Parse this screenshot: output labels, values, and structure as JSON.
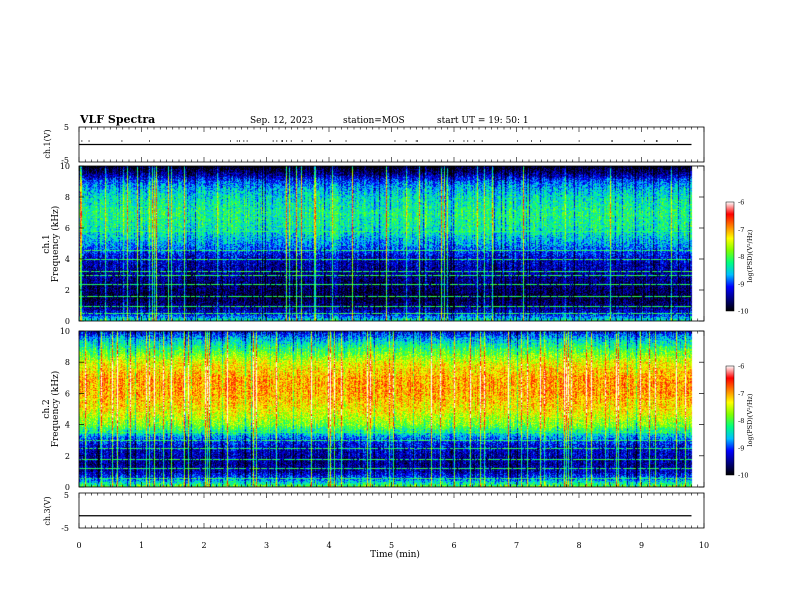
{
  "header": {
    "title": "VLF Spectra",
    "date": "Sep. 12, 2023",
    "station": "station=MOS",
    "start_ut": "start UT =  19: 50: 1"
  },
  "chart_data": [
    {
      "type": "line",
      "panel": "ch1-waveform",
      "ylabel": "ch.1(V)",
      "ylim": [
        -5,
        5
      ],
      "yticks": [
        "5",
        "-5"
      ],
      "series": [
        {
          "x": [
            0,
            9.8
          ],
          "values": [
            0,
            0
          ]
        }
      ]
    },
    {
      "type": "heatmap",
      "panel": "ch1-spectrogram",
      "ylabel": "ch.1  Frequency (kHz)",
      "ylim": [
        0,
        10
      ],
      "yticks": [
        "0",
        "2",
        "4",
        "6",
        "8",
        "10"
      ],
      "xlim": [
        0,
        10
      ],
      "data_end_min": 9.8,
      "colorbar": {
        "label": "log(PSD)(V²/Hz)",
        "ticks": [
          "-6",
          "-7",
          "-8",
          "-9",
          "-10"
        ],
        "range": [
          -10,
          -6
        ]
      },
      "profile": {
        "freq_khz": [
          0,
          0.5,
          1,
          1.5,
          2,
          3,
          4,
          5,
          6,
          7,
          8,
          8.5,
          9,
          9.5,
          10
        ],
        "log_psd": [
          -8.2,
          -9.2,
          -9.6,
          -9.8,
          -9.7,
          -9.5,
          -9.3,
          -8.7,
          -8.3,
          -8.2,
          -8.4,
          -8.6,
          -8.9,
          -9.5,
          -10
        ]
      },
      "line_freqs_khz": [
        0.5,
        1.0,
        1.6,
        2.4,
        3.0,
        3.2,
        4.0,
        4.6,
        5.8
      ]
    },
    {
      "type": "heatmap",
      "panel": "ch2-spectrogram",
      "ylabel": "ch.2  Frequency (kHz)",
      "ylim": [
        0,
        10
      ],
      "yticks": [
        "0",
        "2",
        "4",
        "6",
        "8",
        "10"
      ],
      "xlim": [
        0,
        10
      ],
      "data_end_min": 9.8,
      "colorbar": {
        "label": "log(PSD)(V²/Hz)",
        "ticks": [
          "-6",
          "-7",
          "-8",
          "-9",
          "-10"
        ],
        "range": [
          -10,
          -6
        ]
      },
      "profile": {
        "freq_khz": [
          0,
          0.5,
          1,
          1.5,
          2,
          2.5,
          3,
          3.5,
          4,
          5,
          6,
          7,
          8,
          8.5,
          9,
          9.5,
          10
        ],
        "log_psd": [
          -7.8,
          -8.8,
          -9.4,
          -9.5,
          -9.4,
          -9.3,
          -9.0,
          -8.4,
          -7.8,
          -7.3,
          -7.0,
          -7.0,
          -7.4,
          -7.8,
          -8.2,
          -8.6,
          -9.2
        ]
      },
      "line_freqs_khz": [
        0.6,
        1.2,
        1.8,
        2.5,
        3.0,
        3.5
      ]
    },
    {
      "type": "line",
      "panel": "ch3-waveform",
      "ylabel": "ch.3(V)",
      "ylim": [
        -5,
        5
      ],
      "yticks": [
        "5",
        "-5"
      ],
      "series": [
        {
          "x": [
            0,
            9.8
          ],
          "values": [
            -1.5,
            -1.5
          ]
        }
      ]
    }
  ],
  "xaxis": {
    "label": "Time  (min)",
    "range": [
      0,
      10
    ],
    "ticks": [
      "0",
      "1",
      "2",
      "3",
      "4",
      "5",
      "6",
      "7",
      "8",
      "9",
      "10"
    ]
  },
  "colors": {
    "colormap": [
      "#000000",
      "#000080",
      "#0000ff",
      "#00bfff",
      "#00ff7f",
      "#7fff00",
      "#ffff00",
      "#ff8000",
      "#ff0000",
      "#ffffff"
    ]
  }
}
